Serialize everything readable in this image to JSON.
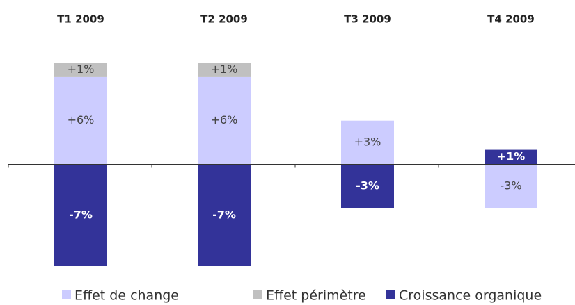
{
  "chart_data": {
    "type": "bar",
    "stacked": true,
    "categories": [
      "T1 2009",
      "T2 2009",
      "T3 2009",
      "T4 2009"
    ],
    "series": [
      {
        "name": "Effet de change",
        "color": "#ccccff",
        "values": [
          6,
          6,
          3,
          -3
        ],
        "value_labels": [
          "+6%",
          "+6%",
          "+3%",
          "-3%"
        ]
      },
      {
        "name": "Effet périmètre",
        "color": "#c0c0c0",
        "values": [
          1,
          1,
          null,
          null
        ],
        "value_labels": [
          "+1%",
          "+1%",
          null,
          null
        ]
      },
      {
        "name": "Croissance organique",
        "color": "#333399",
        "values": [
          -7,
          -7,
          -3,
          1
        ],
        "value_labels": [
          "-7%",
          "-7%",
          "-3%",
          "+1%"
        ]
      }
    ],
    "ylim": [
      -7,
      7
    ]
  }
}
